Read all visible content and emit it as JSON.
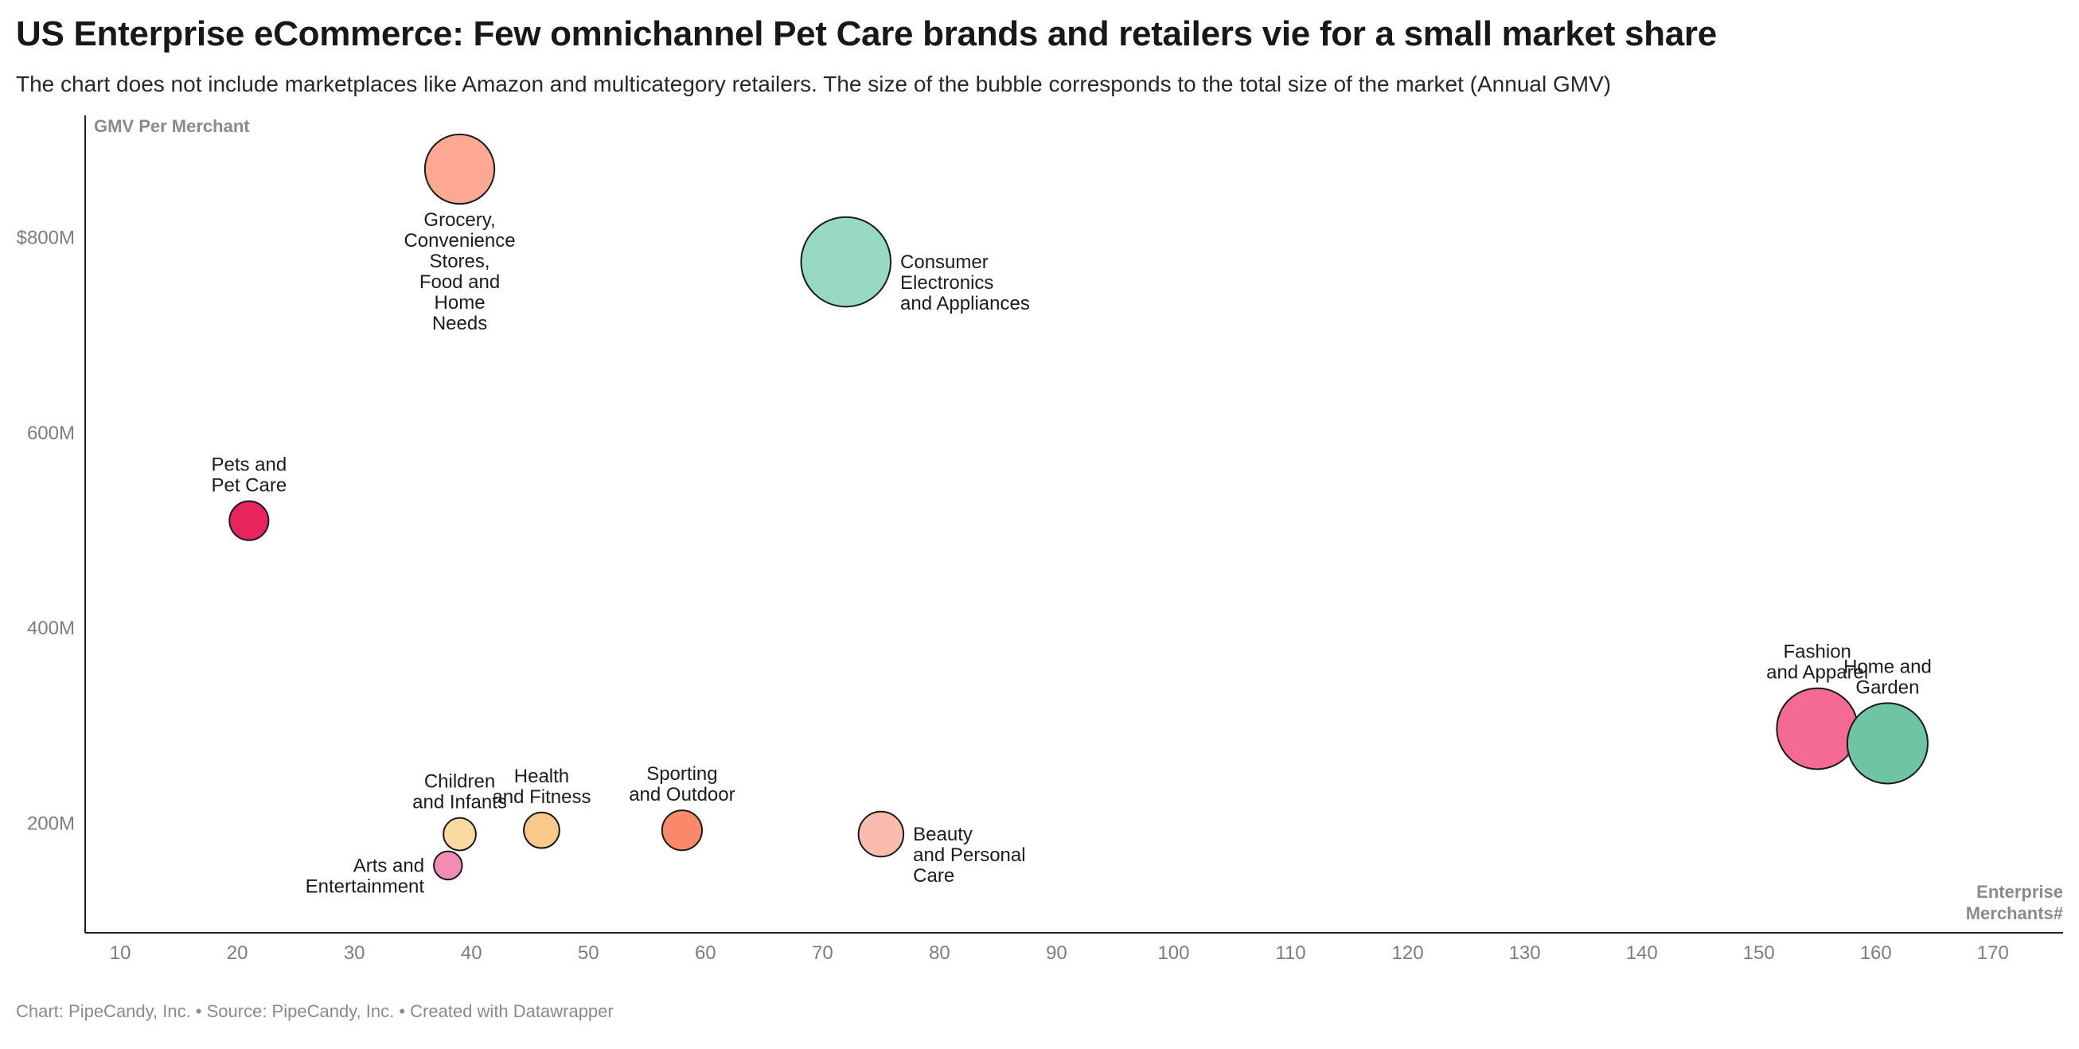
{
  "header": {
    "title": "US Enterprise eCommerce: Few omnichannel Pet Care brands and retailers vie for a small market share",
    "subtitle": "The chart does not include marketplaces like Amazon and multicategory retailers. The size of the bubble corresponds to the total size of the market (Annual GMV)"
  },
  "chart_data": {
    "type": "scatter",
    "variant": "bubble",
    "title": "US Enterprise eCommerce: Few omnichannel Pet Care brands and retailers vie for a small market share",
    "xlabel": "Enterprise Merchants#",
    "xlabel_lines": [
      "Enterprise",
      "Merchants#"
    ],
    "ylabel": "GMV Per Merchant",
    "xlim": [
      7,
      176
    ],
    "ylim": [
      88,
      925
    ],
    "x_ticks": [
      10,
      20,
      30,
      40,
      50,
      60,
      70,
      80,
      90,
      100,
      110,
      120,
      130,
      140,
      150,
      160,
      170
    ],
    "x_tick_labels": [
      "10",
      "20",
      "30",
      "40",
      "50",
      "60",
      "70",
      "80",
      "90",
      "100",
      "110",
      "120",
      "130",
      "140",
      "150",
      "160",
      "170"
    ],
    "y_ticks": [
      200,
      400,
      600,
      800
    ],
    "y_tick_labels": [
      "200M",
      "400M",
      "600M",
      "$800M"
    ],
    "grid": false,
    "size_encoding": "Annual GMV (total market size)",
    "points": [
      {
        "name": "Grocery, Convenience Stores, Food and Home Needs",
        "label_lines": [
          "Grocery,",
          "Convenience",
          "Stores,",
          "Food and",
          "Home",
          "Needs"
        ],
        "x": 39,
        "y": 870,
        "size": 33.9,
        "color": "#fca892",
        "label_pos": "below"
      },
      {
        "name": "Consumer Electronics and Appliances",
        "label_lines": [
          "Consumer",
          "Electronics",
          "and Appliances"
        ],
        "x": 72,
        "y": 775,
        "size": 56.3,
        "color": "#98d9c4",
        "label_pos": "right"
      },
      {
        "name": "Pets and Pet Care",
        "label_lines": [
          "Pets and",
          "Pet Care"
        ],
        "x": 21,
        "y": 510,
        "size": 10.7,
        "color": "#e8245c",
        "label_pos": "above"
      },
      {
        "name": "Fashion and Apparel",
        "label_lines": [
          "Fashion",
          "and Apparel"
        ],
        "x": 155,
        "y": 297,
        "size": 46.0,
        "color": "#f46a92",
        "label_pos": "above"
      },
      {
        "name": "Home and Garden",
        "label_lines": [
          "Home and",
          "Garden"
        ],
        "x": 161,
        "y": 282,
        "size": 45.4,
        "color": "#6fc4a4",
        "label_pos": "above"
      },
      {
        "name": "Children and Infants",
        "label_lines": [
          "Children",
          "and Infants"
        ],
        "x": 39,
        "y": 189,
        "size": 7.4,
        "color": "#fbd9a3",
        "label_pos": "above"
      },
      {
        "name": "Health and Fitness",
        "label_lines": [
          "Health",
          "and Fitness"
        ],
        "x": 46,
        "y": 193,
        "size": 8.9,
        "color": "#f8c98a",
        "label_pos": "above"
      },
      {
        "name": "Sporting and Outdoor",
        "label_lines": [
          "Sporting",
          "and Outdoor"
        ],
        "x": 58,
        "y": 193,
        "size": 11.2,
        "color": "#f88a6a",
        "label_pos": "above"
      },
      {
        "name": "Beauty and Personal Care",
        "label_lines": [
          "Beauty",
          "and Personal",
          "Care"
        ],
        "x": 75,
        "y": 189,
        "size": 14.2,
        "color": "#fbbcb0",
        "label_pos": "right"
      },
      {
        "name": "Arts and Entertainment",
        "label_lines": [
          "Arts and",
          "Entertainment"
        ],
        "x": 38,
        "y": 157,
        "size": 5.6,
        "color": "#f38cb2",
        "label_pos": "left"
      }
    ]
  },
  "footer": {
    "text": "Chart: PipeCandy, Inc. • Source: PipeCandy, Inc. • Created with Datawrapper"
  }
}
